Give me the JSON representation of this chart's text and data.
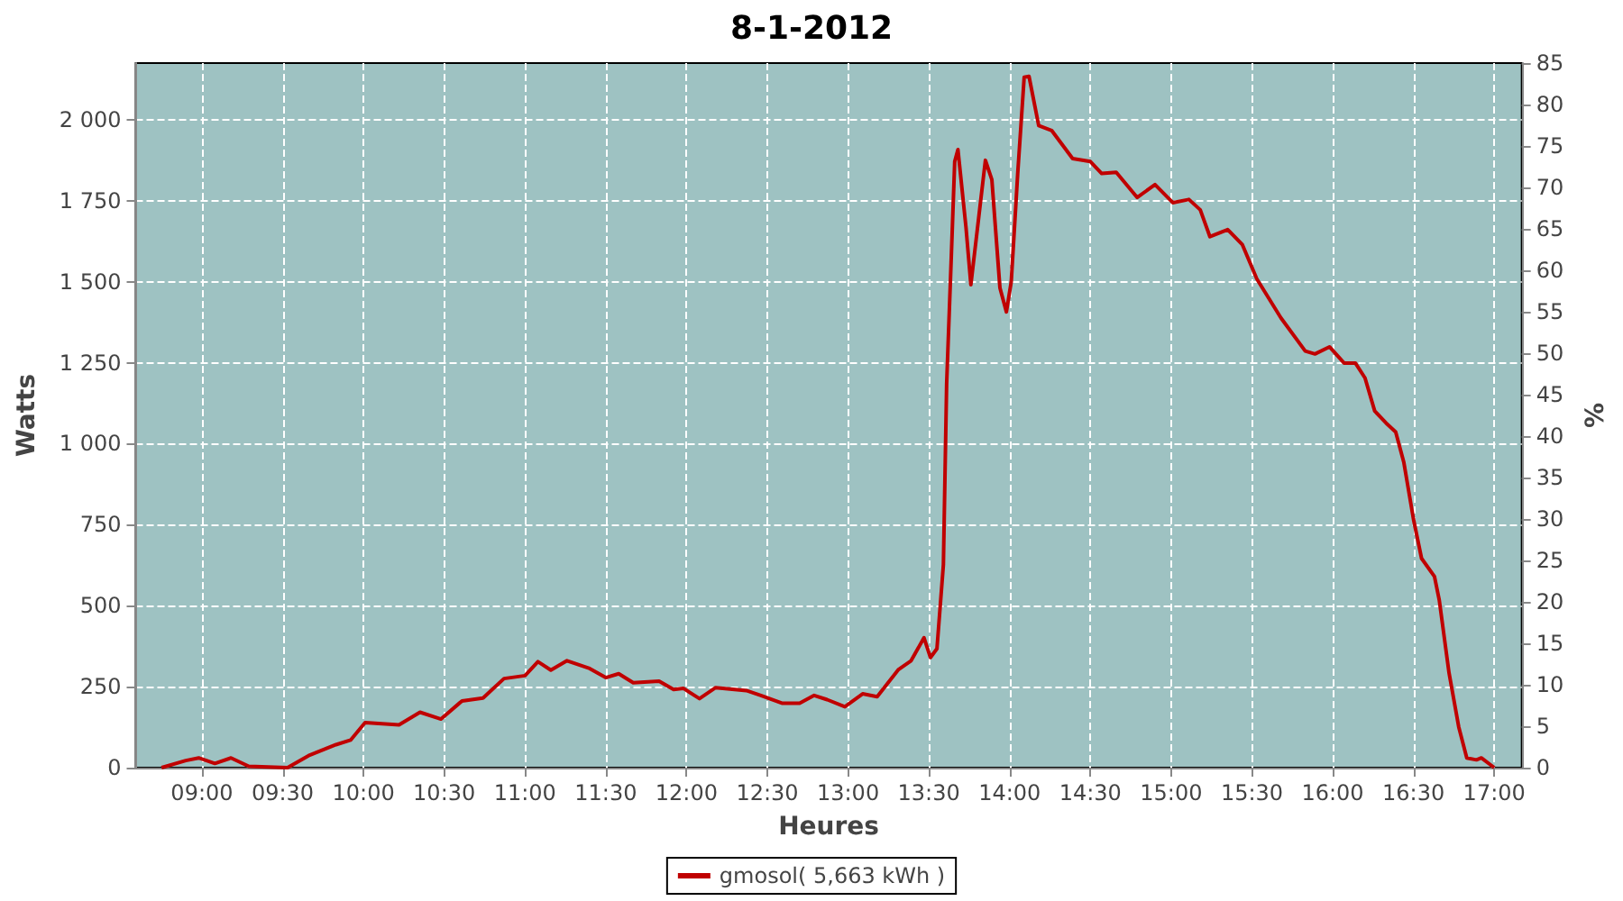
{
  "chart_data": {
    "type": "line",
    "title": "8-1-2012",
    "xlabel": "Heures",
    "ylabel": "Watts",
    "y2label": "%",
    "xlim": [
      8.59,
      17.17
    ],
    "xticks": [
      {
        "value": 9,
        "label": "09:00"
      },
      {
        "value": 9.5,
        "label": "09:30"
      },
      {
        "value": 10,
        "label": "10:00"
      },
      {
        "value": 10.5,
        "label": "10:30"
      },
      {
        "value": 11,
        "label": "11:00"
      },
      {
        "value": 11.5,
        "label": "11:30"
      },
      {
        "value": 12,
        "label": "12:00"
      },
      {
        "value": 12.5,
        "label": "12:30"
      },
      {
        "value": 13,
        "label": "13:00"
      },
      {
        "value": 13.5,
        "label": "13:30"
      },
      {
        "value": 14,
        "label": "14:00"
      },
      {
        "value": 14.5,
        "label": "14:30"
      },
      {
        "value": 15,
        "label": "15:00"
      },
      {
        "value": 15.5,
        "label": "15:30"
      },
      {
        "value": 16,
        "label": "16:00"
      },
      {
        "value": 16.5,
        "label": "16:30"
      },
      {
        "value": 17,
        "label": "17:00"
      }
    ],
    "ylim": [
      0,
      2175
    ],
    "yticks": [
      0,
      250,
      500,
      750,
      {
        "value": 1000,
        "label": "1 000"
      },
      {
        "value": 1250,
        "label": "1 250"
      },
      {
        "value": 1500,
        "label": "1 500"
      },
      {
        "value": 1750,
        "label": "1 750"
      },
      {
        "value": 2000,
        "label": "2 000"
      }
    ],
    "y2lim": [
      0,
      85
    ],
    "y2ticks": [
      0,
      5,
      10,
      15,
      20,
      25,
      30,
      35,
      40,
      45,
      50,
      55,
      60,
      65,
      70,
      75,
      80,
      85
    ],
    "grid": true,
    "legend": "bottom",
    "marker": "none",
    "line_style": "solid",
    "series": [
      {
        "name": "gmosol( 5,663 kWh )",
        "color": "#c00000",
        "x": [
          8.75,
          8.9,
          8.98,
          9.08,
          9.18,
          9.29,
          9.53,
          9.66,
          9.83,
          9.92,
          10.01,
          10.22,
          10.35,
          10.48,
          10.61,
          10.74,
          10.87,
          11.0,
          11.08,
          11.16,
          11.26,
          11.4,
          11.5,
          11.58,
          11.67,
          11.83,
          11.92,
          11.98,
          12.08,
          12.18,
          12.37,
          12.46,
          12.59,
          12.7,
          12.79,
          12.87,
          12.98,
          13.09,
          13.18,
          13.31,
          13.39,
          13.47,
          13.51,
          13.55,
          13.59,
          13.61,
          13.64,
          13.66,
          13.68,
          13.73,
          13.76,
          13.81,
          13.85,
          13.89,
          13.94,
          13.98,
          14.01,
          14.05,
          14.09,
          14.12,
          14.18,
          14.26,
          14.39,
          14.5,
          14.57,
          14.66,
          14.79,
          14.9,
          15.01,
          15.11,
          15.18,
          15.24,
          15.35,
          15.44,
          15.53,
          15.68,
          15.83,
          15.89,
          15.98,
          16.07,
          16.14,
          16.2,
          16.26,
          16.33,
          16.39,
          16.44,
          16.5,
          16.55,
          16.63,
          16.66,
          16.72,
          16.78,
          16.83,
          16.89,
          16.92,
          17.0
        ],
        "values": [
          0,
          22,
          30,
          13,
          30,
          4,
          0,
          37,
          71,
          85,
          139,
          132,
          171,
          150,
          206,
          215,
          275,
          284,
          327,
          301,
          330,
          306,
          278,
          290,
          262,
          267,
          241,
          245,
          213,
          247,
          238,
          223,
          199,
          199,
          223,
          210,
          188,
          228,
          219,
          302,
          330,
          401,
          340,
          367,
          627,
          1184,
          1592,
          1871,
          1908,
          1667,
          1491,
          1704,
          1875,
          1815,
          1481,
          1407,
          1500,
          1834,
          2131,
          2134,
          1982,
          1967,
          1880,
          1871,
          1834,
          1838,
          1760,
          1800,
          1744,
          1754,
          1722,
          1639,
          1661,
          1615,
          1509,
          1388,
          1286,
          1277,
          1299,
          1249,
          1249,
          1203,
          1101,
          1064,
          1036,
          943,
          767,
          646,
          590,
          516,
          293,
          126,
          30,
          24,
          30,
          0
        ]
      }
    ]
  }
}
